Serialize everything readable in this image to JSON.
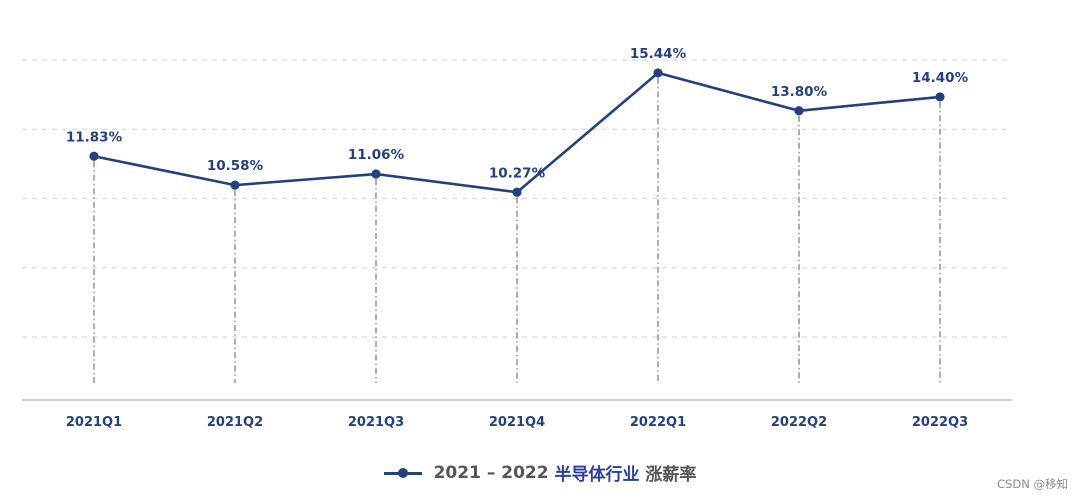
{
  "chart_data": {
    "type": "line",
    "categories": [
      "2021Q1",
      "2021Q2",
      "2021Q3",
      "2021Q4",
      "2022Q1",
      "2022Q2",
      "2022Q3"
    ],
    "series": [
      {
        "name": "2021 – 2022 半导体行业 涨薪率",
        "values": [
          11.83,
          10.58,
          11.06,
          10.27,
          15.44,
          13.8,
          14.4
        ],
        "labels": [
          "11.83%",
          "10.58%",
          "11.06%",
          "10.27%",
          "15.44%",
          "13.80%",
          "14.40%"
        ]
      }
    ],
    "ylim": [
      2.5,
      16.5
    ],
    "gridlines": [
      4,
      7,
      10,
      13,
      16
    ],
    "grid": true,
    "legend_position": "bottom-center",
    "legend": {
      "prefix": "2021 – 2022 ",
      "highlight": "半导体行业",
      "suffix": " 涨薪率"
    }
  },
  "colors": {
    "line": "#23407f",
    "labels": "#23407f",
    "legend_prefix": "#555555",
    "legend_highlight": "#2c3f9a",
    "legend_suffix": "#555555"
  },
  "watermark": "CSDN @移知"
}
